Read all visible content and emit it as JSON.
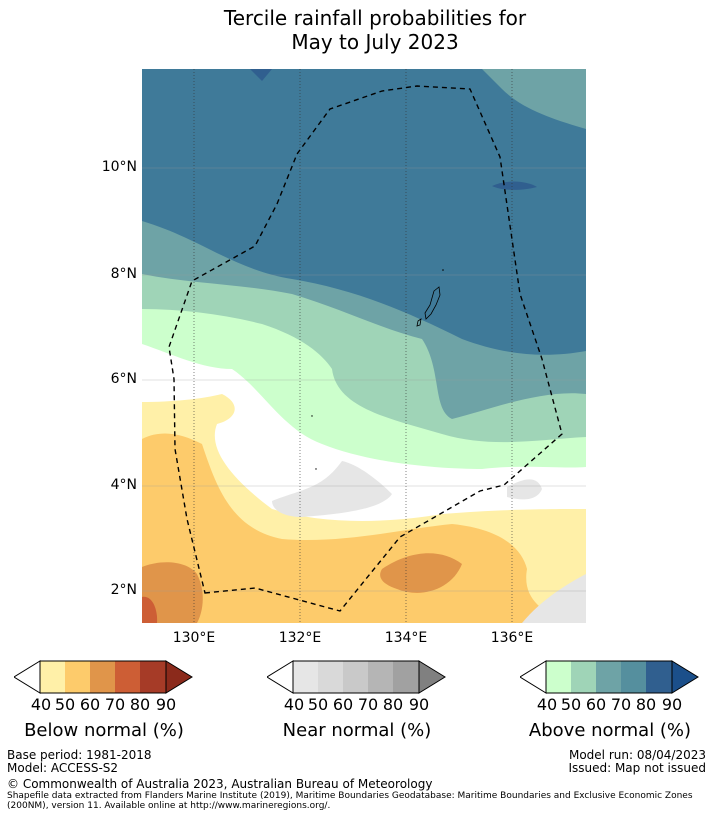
{
  "title_line1": "Tercile rainfall probabilities for",
  "title_line2": "May to July 2023",
  "map": {
    "lat_labels": [
      "10°N",
      "8°N",
      "6°N",
      "4°N",
      "2°N"
    ],
    "lon_labels": [
      "130°E",
      "132°E",
      "134°E",
      "136°E"
    ]
  },
  "colorbars": {
    "below": {
      "title": "Below normal (%)",
      "ticks": [
        "40",
        "50",
        "60",
        "70",
        "80",
        "90"
      ],
      "colors": [
        "#fff0a8",
        "#fdcb6b",
        "#e0954a",
        "#cd5e35",
        "#a63b27",
        "#8b2a1b"
      ]
    },
    "near": {
      "title": "Near normal (%)",
      "ticks": [
        "40",
        "50",
        "60",
        "70",
        "80",
        "90"
      ],
      "colors": [
        "#e6e6e6",
        "#d9d9d9",
        "#c9c9c9",
        "#b5b5b5",
        "#a1a1a1",
        "#808080"
      ]
    },
    "above": {
      "title": "Above normal (%)",
      "ticks": [
        "40",
        "50",
        "60",
        "70",
        "80",
        "90"
      ],
      "colors": [
        "#ccffcc",
        "#9fd4b7",
        "#6ea3a6",
        "#558f9e",
        "#305f8f",
        "#1b4f8a"
      ]
    }
  },
  "footer": {
    "base_period": "Base period: 1981-2018",
    "model": "Model: ACCESS-S2",
    "model_run": "Model run: 08/04/2023",
    "issued": "Issued: Map not issued",
    "copyright": "© Commonwealth of Australia 2023, Australian Bureau of Meteorology",
    "shapefile_line1": "Shapefile data extracted from Flanders Marine Institute (2019), Maritime Boundaries Geodatabase: Maritime Boundaries and Exclusive Economic Zones",
    "shapefile_line2": "(200NM), version 11. Available online at http://www.marineregions.org/."
  }
}
